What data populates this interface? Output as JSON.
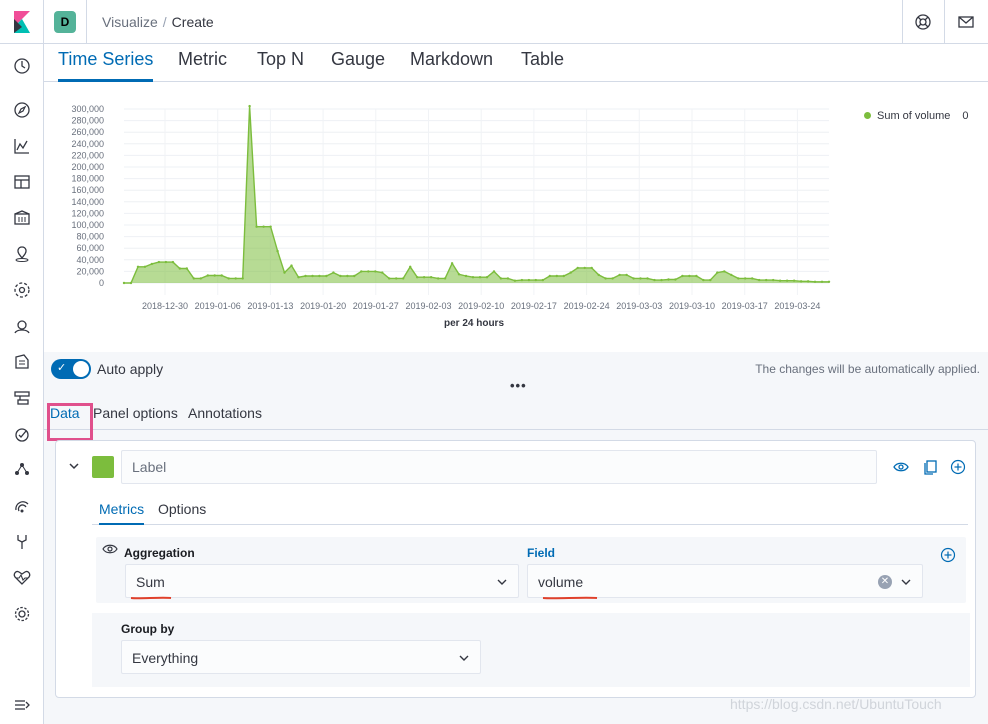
{
  "header": {
    "space_initial": "D",
    "breadcrumbs": [
      "Visualize",
      "Create"
    ],
    "icons": [
      "elastic-logo-icon",
      "help-icon",
      "mail-icon"
    ]
  },
  "sidebar": {
    "icons": [
      "recent-clock-icon",
      "discover-compass-icon",
      "visualize-chart-icon",
      "dashboard-icon",
      "canvas-icon",
      "maps-icon",
      "ml-icon",
      "infrastructure-icon",
      "logs-icon",
      "apm-icon",
      "uptime-icon",
      "graph-icon",
      "siem-icon",
      "dev-tools-icon",
      "monitoring-icon",
      "management-gear-icon",
      "collapse-nav-icon"
    ]
  },
  "vis_tabs": {
    "items": [
      "Time Series",
      "Metric",
      "Top N",
      "Gauge",
      "Markdown",
      "Table"
    ],
    "active": "Time Series"
  },
  "chart_data": {
    "type": "area",
    "title": "",
    "xlabel": "per 24 hours",
    "ylabel": "",
    "ylim": [
      0,
      300000
    ],
    "ytick_labels": [
      "0",
      "20,000",
      "40,000",
      "60,000",
      "80,000",
      "100,000",
      "120,000",
      "140,000",
      "160,000",
      "180,000",
      "200,000",
      "220,000",
      "240,000",
      "260,000",
      "280,000",
      "300,000"
    ],
    "xtick_labels": [
      "2018-12-30",
      "2019-01-06",
      "2019-01-13",
      "2019-01-20",
      "2019-01-27",
      "2019-02-03",
      "2019-02-10",
      "2019-02-17",
      "2019-02-24",
      "2019-03-03",
      "2019-03-10",
      "2019-03-17",
      "2019-03-24"
    ],
    "grid": true,
    "legend_position": "top-right",
    "color": "#7cbd3d",
    "series": [
      {
        "name": "Sum of volume",
        "legend_value": "0",
        "values": [
          0,
          0,
          28000,
          28000,
          33000,
          36000,
          36000,
          36000,
          25000,
          25000,
          8000,
          8000,
          13000,
          13000,
          13000,
          8000,
          8000,
          8000,
          305000,
          97000,
          97000,
          97000,
          55000,
          18000,
          30000,
          10000,
          12000,
          12000,
          12000,
          12000,
          18000,
          12000,
          12000,
          12000,
          20000,
          20000,
          20000,
          18000,
          8000,
          8000,
          8000,
          28000,
          10000,
          10000,
          10000,
          8000,
          8000,
          34000,
          15000,
          12000,
          10000,
          10000,
          10000,
          20000,
          8000,
          8000,
          4000,
          5000,
          5000,
          5000,
          5000,
          12000,
          12000,
          12000,
          18000,
          26000,
          26000,
          26000,
          14000,
          8000,
          8000,
          14000,
          14000,
          8000,
          8000,
          8000,
          5000,
          5000,
          6000,
          6000,
          12000,
          12000,
          12000,
          5000,
          5000,
          18000,
          20000,
          14000,
          8000,
          8000,
          8000,
          5000,
          5000,
          5000,
          4000,
          4000,
          4000,
          3000,
          3000,
          2000,
          2000,
          2000
        ]
      }
    ]
  },
  "auto_apply": {
    "label": "Auto apply",
    "enabled": true,
    "note": "The changes will be automatically applied.",
    "more": "•••"
  },
  "panel_tabs": {
    "items": [
      "Data",
      "Panel options",
      "Annotations"
    ],
    "active": "Data"
  },
  "series_panel": {
    "color": "#7cbd3d",
    "label_placeholder": "Label",
    "metrics_tabs": [
      "Metrics",
      "Options"
    ],
    "aggregation_title": "Aggregation",
    "aggregation_value": "Sum",
    "field_title": "Field",
    "field_value": "volume",
    "group_by_title": "Group by",
    "group_by_value": "Everything"
  },
  "watermark": "https://blog.csdn.net/UbuntuTouch"
}
